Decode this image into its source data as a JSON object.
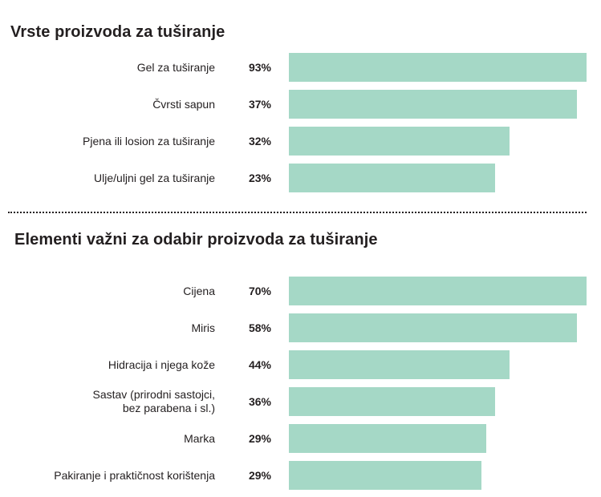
{
  "chart_data": [
    {
      "type": "bar",
      "orientation": "horizontal",
      "title": "Vrste proizvoda za tuširanje",
      "categories": [
        "Gel za tuširanje",
        "Čvrsti sapun",
        "Pjena ili losion za tuširanje",
        "Ulje/uljni gel za tuširanje"
      ],
      "values": [
        93,
        37,
        32,
        23
      ],
      "value_labels": [
        "93%",
        "37%",
        "32%",
        "23%"
      ],
      "bar_color": "#a5d8c6",
      "grid": false,
      "legend": "none"
    },
    {
      "type": "bar",
      "orientation": "horizontal",
      "title": "Elementi važni za odabir proizvoda za tuširanje",
      "categories": [
        "Cijena",
        "Miris",
        "Hidracija i njega kože",
        "Sastav (prirodni sastojci,\nbez parabena i sl.)",
        "Marka",
        "Pakiranje i praktičnost korištenja"
      ],
      "values": [
        70,
        58,
        44,
        36,
        29,
        29
      ],
      "value_labels": [
        "70%",
        "58%",
        "44%",
        "36%",
        "29%",
        "29%"
      ],
      "bar_color": "#a5d8c6",
      "grid": false,
      "legend": "none"
    }
  ]
}
